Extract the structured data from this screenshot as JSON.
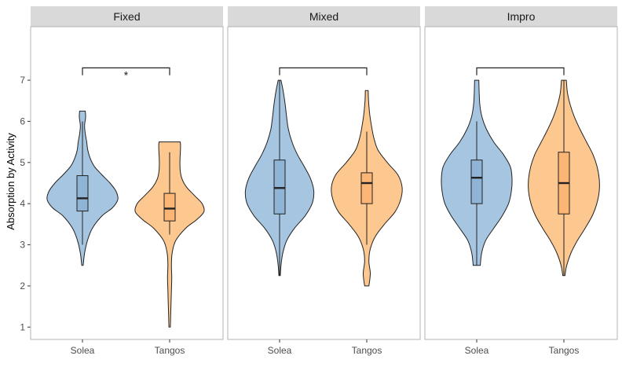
{
  "chart_data": {
    "type": "violin",
    "ylabel": "Absorption by Activity",
    "ylim": [
      0.7,
      8.3
    ],
    "yticks": [
      1,
      2,
      3,
      4,
      5,
      6,
      7
    ],
    "categories": [
      "Solea",
      "Tangos"
    ],
    "colors": {
      "Solea": "#a6c5e1",
      "Tangos": "#fdc790"
    },
    "box_colors": {
      "Solea": "#8fb4d6",
      "Tangos": "#fbb574"
    },
    "panels": [
      {
        "title": "Fixed",
        "significance": "*",
        "groups": [
          {
            "category": "Solea",
            "min": 2.5,
            "q1": 3.82,
            "median": 4.13,
            "q3": 4.68,
            "max": 6.25,
            "whisker_low": 3.0,
            "whisker_high": 6.0,
            "density": [
              [
                2.5,
                0.02
              ],
              [
                2.8,
                0.06
              ],
              [
                3.1,
                0.14
              ],
              [
                3.4,
                0.28
              ],
              [
                3.7,
                0.55
              ],
              [
                3.9,
                0.85
              ],
              [
                4.1,
                1.0
              ],
              [
                4.3,
                0.95
              ],
              [
                4.5,
                0.78
              ],
              [
                4.7,
                0.55
              ],
              [
                4.9,
                0.34
              ],
              [
                5.1,
                0.22
              ],
              [
                5.3,
                0.15
              ],
              [
                5.5,
                0.12
              ],
              [
                5.7,
                0.08
              ],
              [
                5.9,
                0.06
              ],
              [
                6.1,
                0.09
              ],
              [
                6.25,
                0.08
              ]
            ]
          },
          {
            "category": "Tangos",
            "min": 1.0,
            "q1": 3.58,
            "median": 3.88,
            "q3": 4.25,
            "max": 5.5,
            "whisker_low": 3.25,
            "whisker_high": 5.25,
            "density": [
              [
                1.0,
                0.02
              ],
              [
                1.3,
                0.03
              ],
              [
                1.6,
                0.04
              ],
              [
                1.9,
                0.05
              ],
              [
                2.2,
                0.06
              ],
              [
                2.5,
                0.05
              ],
              [
                2.8,
                0.07
              ],
              [
                3.1,
                0.17
              ],
              [
                3.4,
                0.45
              ],
              [
                3.6,
                0.75
              ],
              [
                3.8,
                0.97
              ],
              [
                4.0,
                0.92
              ],
              [
                4.2,
                0.7
              ],
              [
                4.4,
                0.48
              ],
              [
                4.6,
                0.35
              ],
              [
                4.8,
                0.3
              ],
              [
                5.0,
                0.29
              ],
              [
                5.2,
                0.3
              ],
              [
                5.4,
                0.31
              ],
              [
                5.5,
                0.3
              ]
            ]
          }
        ]
      },
      {
        "title": "Mixed",
        "significance": "",
        "groups": [
          {
            "category": "Solea",
            "min": 2.25,
            "q1": 3.75,
            "median": 4.38,
            "q3": 5.06,
            "max": 7.0,
            "whisker_low": 2.25,
            "whisker_high": 7.0,
            "density": [
              [
                2.25,
                0.02
              ],
              [
                2.5,
                0.04
              ],
              [
                2.8,
                0.09
              ],
              [
                3.1,
                0.2
              ],
              [
                3.4,
                0.42
              ],
              [
                3.7,
                0.72
              ],
              [
                4.0,
                0.92
              ],
              [
                4.3,
                0.97
              ],
              [
                4.6,
                0.88
              ],
              [
                4.9,
                0.7
              ],
              [
                5.2,
                0.5
              ],
              [
                5.5,
                0.35
              ],
              [
                5.8,
                0.25
              ],
              [
                6.1,
                0.2
              ],
              [
                6.4,
                0.16
              ],
              [
                6.7,
                0.11
              ],
              [
                7.0,
                0.04
              ]
            ]
          },
          {
            "category": "Tangos",
            "min": 2.0,
            "q1": 4.0,
            "median": 4.5,
            "q3": 4.75,
            "max": 6.75,
            "whisker_low": 3.0,
            "whisker_high": 5.75,
            "density": [
              [
                2.0,
                0.06
              ],
              [
                2.3,
                0.1
              ],
              [
                2.6,
                0.06
              ],
              [
                2.9,
                0.1
              ],
              [
                3.2,
                0.24
              ],
              [
                3.5,
                0.5
              ],
              [
                3.8,
                0.8
              ],
              [
                4.1,
                0.96
              ],
              [
                4.4,
                1.0
              ],
              [
                4.7,
                0.88
              ],
              [
                5.0,
                0.58
              ],
              [
                5.3,
                0.32
              ],
              [
                5.6,
                0.2
              ],
              [
                5.9,
                0.13
              ],
              [
                6.2,
                0.08
              ],
              [
                6.5,
                0.05
              ],
              [
                6.75,
                0.04
              ]
            ]
          }
        ]
      },
      {
        "title": "Impro",
        "significance": "",
        "groups": [
          {
            "category": "Solea",
            "min": 2.5,
            "q1": 4.0,
            "median": 4.63,
            "q3": 5.06,
            "max": 7.0,
            "whisker_low": 2.5,
            "whisker_high": 6.0,
            "density": [
              [
                2.5,
                0.1
              ],
              [
                2.8,
                0.14
              ],
              [
                3.1,
                0.25
              ],
              [
                3.4,
                0.48
              ],
              [
                3.7,
                0.72
              ],
              [
                4.0,
                0.9
              ],
              [
                4.3,
                0.98
              ],
              [
                4.6,
                1.0
              ],
              [
                4.9,
                0.95
              ],
              [
                5.2,
                0.75
              ],
              [
                5.5,
                0.48
              ],
              [
                5.8,
                0.28
              ],
              [
                6.1,
                0.15
              ],
              [
                6.4,
                0.09
              ],
              [
                6.7,
                0.07
              ],
              [
                7.0,
                0.06
              ]
            ]
          },
          {
            "category": "Tangos",
            "min": 2.25,
            "q1": 3.75,
            "median": 4.5,
            "q3": 5.25,
            "max": 7.0,
            "whisker_low": 2.25,
            "whisker_high": 7.0,
            "density": [
              [
                2.25,
                0.03
              ],
              [
                2.5,
                0.08
              ],
              [
                2.8,
                0.2
              ],
              [
                3.1,
                0.38
              ],
              [
                3.4,
                0.6
              ],
              [
                3.7,
                0.8
              ],
              [
                4.0,
                0.93
              ],
              [
                4.3,
                1.0
              ],
              [
                4.6,
                1.0
              ],
              [
                4.9,
                0.94
              ],
              [
                5.2,
                0.82
              ],
              [
                5.5,
                0.64
              ],
              [
                5.8,
                0.46
              ],
              [
                6.1,
                0.3
              ],
              [
                6.4,
                0.18
              ],
              [
                6.7,
                0.1
              ],
              [
                7.0,
                0.07
              ]
            ]
          }
        ]
      }
    ]
  }
}
